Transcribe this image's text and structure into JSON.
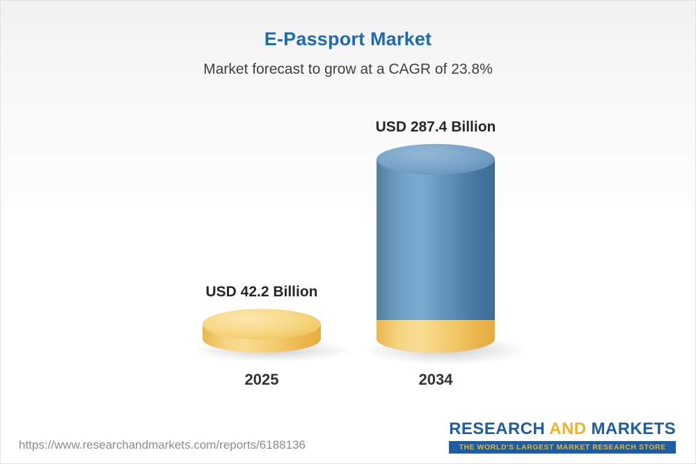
{
  "header": {
    "title": "E-Passport Market",
    "subtitle": "Market forecast to grow at a CAGR of 23.8%"
  },
  "chart_data": {
    "type": "bar",
    "title": "E-Passport Market",
    "subtitle": "Market forecast to grow at a CAGR of 23.8%",
    "unit": "USD Billion",
    "cagr_percent": 23.8,
    "categories": [
      "2025",
      "2034"
    ],
    "values": [
      42.2,
      287.4
    ],
    "ylim": [
      0,
      287.4
    ],
    "grid": false,
    "legend": false,
    "bars": [
      {
        "category": "2025",
        "value": 42.2,
        "label": "USD 42.2 Billion",
        "color": "#F2C75C"
      },
      {
        "category": "2034",
        "value": 287.4,
        "label": "USD 287.4 Billion",
        "color": "#4C7FA8",
        "base_color": "#F2C75C"
      }
    ],
    "colors": {
      "gold_bar": "#F2C75C",
      "blue_bar": "#4C7FA8",
      "title_blue": "#1C6BB3"
    }
  },
  "footer": {
    "url": "https://www.researchandmarkets.com/reports/6188136",
    "logo": {
      "research": "RESEARCH",
      "and": "AND",
      "markets": "MARKETS",
      "tagline": "THE WORLD'S LARGEST MARKET RESEARCH STORE"
    }
  }
}
